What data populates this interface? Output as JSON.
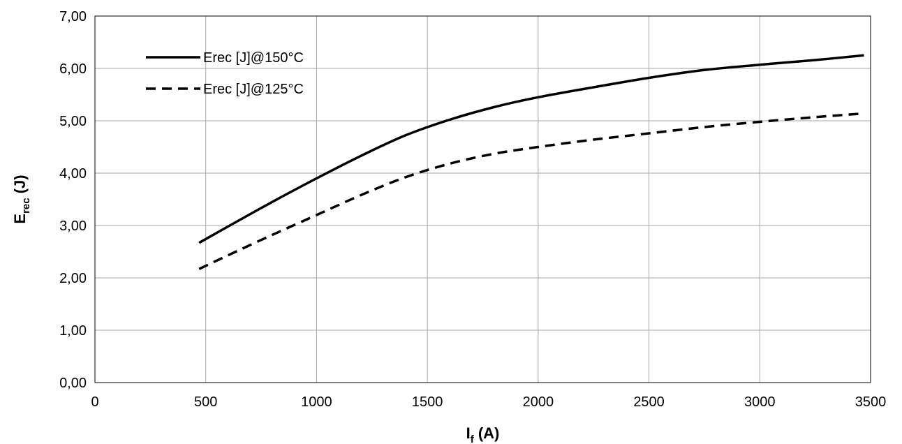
{
  "chart_data": {
    "type": "line",
    "title": "",
    "xlabel": {
      "main": "I",
      "sub": "f",
      "rest": " (A)"
    },
    "ylabel": {
      "main": "E",
      "sub": "rec",
      "rest": " (J)"
    },
    "xlim": [
      0,
      3500
    ],
    "ylim": [
      0,
      7
    ],
    "xticks": [
      0,
      500,
      1000,
      1500,
      2000,
      2500,
      3000,
      3500
    ],
    "xtick_labels": [
      "0",
      "500",
      "1000",
      "1500",
      "2000",
      "2500",
      "3000",
      "3500"
    ],
    "yticks": [
      0,
      1,
      2,
      3,
      4,
      5,
      6,
      7
    ],
    "ytick_labels": [
      "0,00",
      "1,00",
      "2,00",
      "3,00",
      "4,00",
      "5,00",
      "6,00",
      "7,00"
    ],
    "grid": true,
    "legend_position": "top-left",
    "series": [
      {
        "name": "Erec [J]@150°C",
        "style": "solid",
        "color": "#000000",
        "x": [
          470,
          600,
          800,
          1000,
          1200,
          1400,
          1600,
          1800,
          2000,
          2250,
          2500,
          2750,
          3000,
          3250,
          3470
        ],
        "y": [
          2.67,
          2.98,
          3.45,
          3.9,
          4.33,
          4.72,
          5.02,
          5.26,
          5.45,
          5.64,
          5.82,
          5.97,
          6.07,
          6.16,
          6.25
        ]
      },
      {
        "name": "Erec [J]@125°C",
        "style": "dashed",
        "color": "#000000",
        "x": [
          470,
          600,
          800,
          1000,
          1200,
          1400,
          1600,
          1800,
          2000,
          2250,
          2500,
          2750,
          3000,
          3250,
          3470
        ],
        "y": [
          2.17,
          2.43,
          2.82,
          3.2,
          3.58,
          3.92,
          4.18,
          4.37,
          4.5,
          4.64,
          4.76,
          4.88,
          4.98,
          5.07,
          5.14
        ]
      }
    ]
  }
}
